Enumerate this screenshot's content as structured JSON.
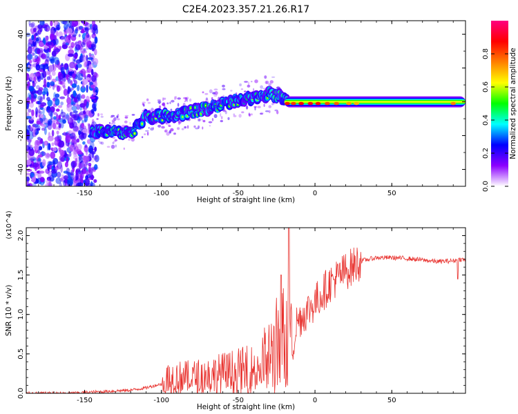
{
  "figure_title": "C2E4.2023.357.21.26.R17",
  "chart_data": [
    {
      "type": "heatmap",
      "title": "C2E4.2023.357.21.26.R17",
      "xlabel": "Height of straight line (km)",
      "ylabel": "Frequency (Hz)",
      "xlim": [
        -188,
        98
      ],
      "ylim": [
        -50,
        48
      ],
      "x_ticks": [
        -150,
        -100,
        -50,
        0,
        50
      ],
      "y_ticks": [
        -40,
        -20,
        0,
        20,
        40
      ],
      "colorbar_label": "Normalized spectral amplitude",
      "colorbar_ticks": [
        0.0,
        0.2,
        0.4,
        0.6,
        0.8
      ],
      "colorbar_range": [
        0,
        1
      ],
      "colormap": [
        "#ffffff",
        "#8c00ff",
        "#0000ff",
        "#00ffff",
        "#00ff00",
        "#ffff00",
        "#ff8000",
        "#ff0000",
        "#ff0080"
      ],
      "ridge": {
        "x": [
          -145,
          -120,
          -110,
          -90,
          -70,
          -50,
          -40,
          -30,
          -22,
          -15,
          0,
          10,
          30,
          50,
          70,
          95
        ],
        "frequency": [
          -17,
          -19,
          -9,
          -8,
          -4,
          1,
          2,
          5,
          3,
          0,
          0,
          -2,
          0,
          0,
          0,
          0
        ]
      },
      "noise_region_x": [
        -188,
        -142
      ],
      "grid": false
    },
    {
      "type": "line",
      "xlabel": "Height of straight line (km)",
      "ylabel": "SNR (10 * v/v)",
      "y_multiplier": "(x10^4)",
      "xlim": [
        -188,
        98
      ],
      "ylim": [
        0,
        2.1
      ],
      "x_ticks": [
        -150,
        -100,
        -50,
        0,
        50
      ],
      "y_ticks": [
        0.0,
        0.5,
        1.0,
        1.5,
        2.0
      ],
      "y_tick_labels": [
        "0.0",
        "0.5",
        "1.0",
        "1.5",
        "2.0"
      ],
      "color": "#e8302c",
      "grid": false,
      "series": [
        {
          "x": [
            -188,
            -160,
            -140,
            -120,
            -110,
            -100,
            -95,
            -80,
            -60,
            -40,
            -30,
            -25,
            -20,
            -17,
            -15,
            -12,
            -5,
            0,
            10,
            20,
            30,
            40,
            50,
            60,
            70,
            80,
            90,
            95,
            98
          ],
          "y": [
            0.0,
            0.0,
            0.02,
            0.04,
            0.07,
            0.12,
            0.2,
            0.2,
            0.25,
            0.3,
            0.45,
            0.6,
            0.7,
            0.85,
            0.5,
            0.9,
            1.05,
            1.15,
            1.4,
            1.55,
            1.68,
            1.72,
            1.72,
            1.71,
            1.69,
            1.67,
            1.68,
            1.7,
            1.69
          ],
          "peaks": [
            {
              "x": -17,
              "y": 2.15
            },
            {
              "x": -22,
              "y": 1.5
            },
            {
              "x": 93,
              "y": 1.45
            }
          ]
        }
      ]
    }
  ]
}
